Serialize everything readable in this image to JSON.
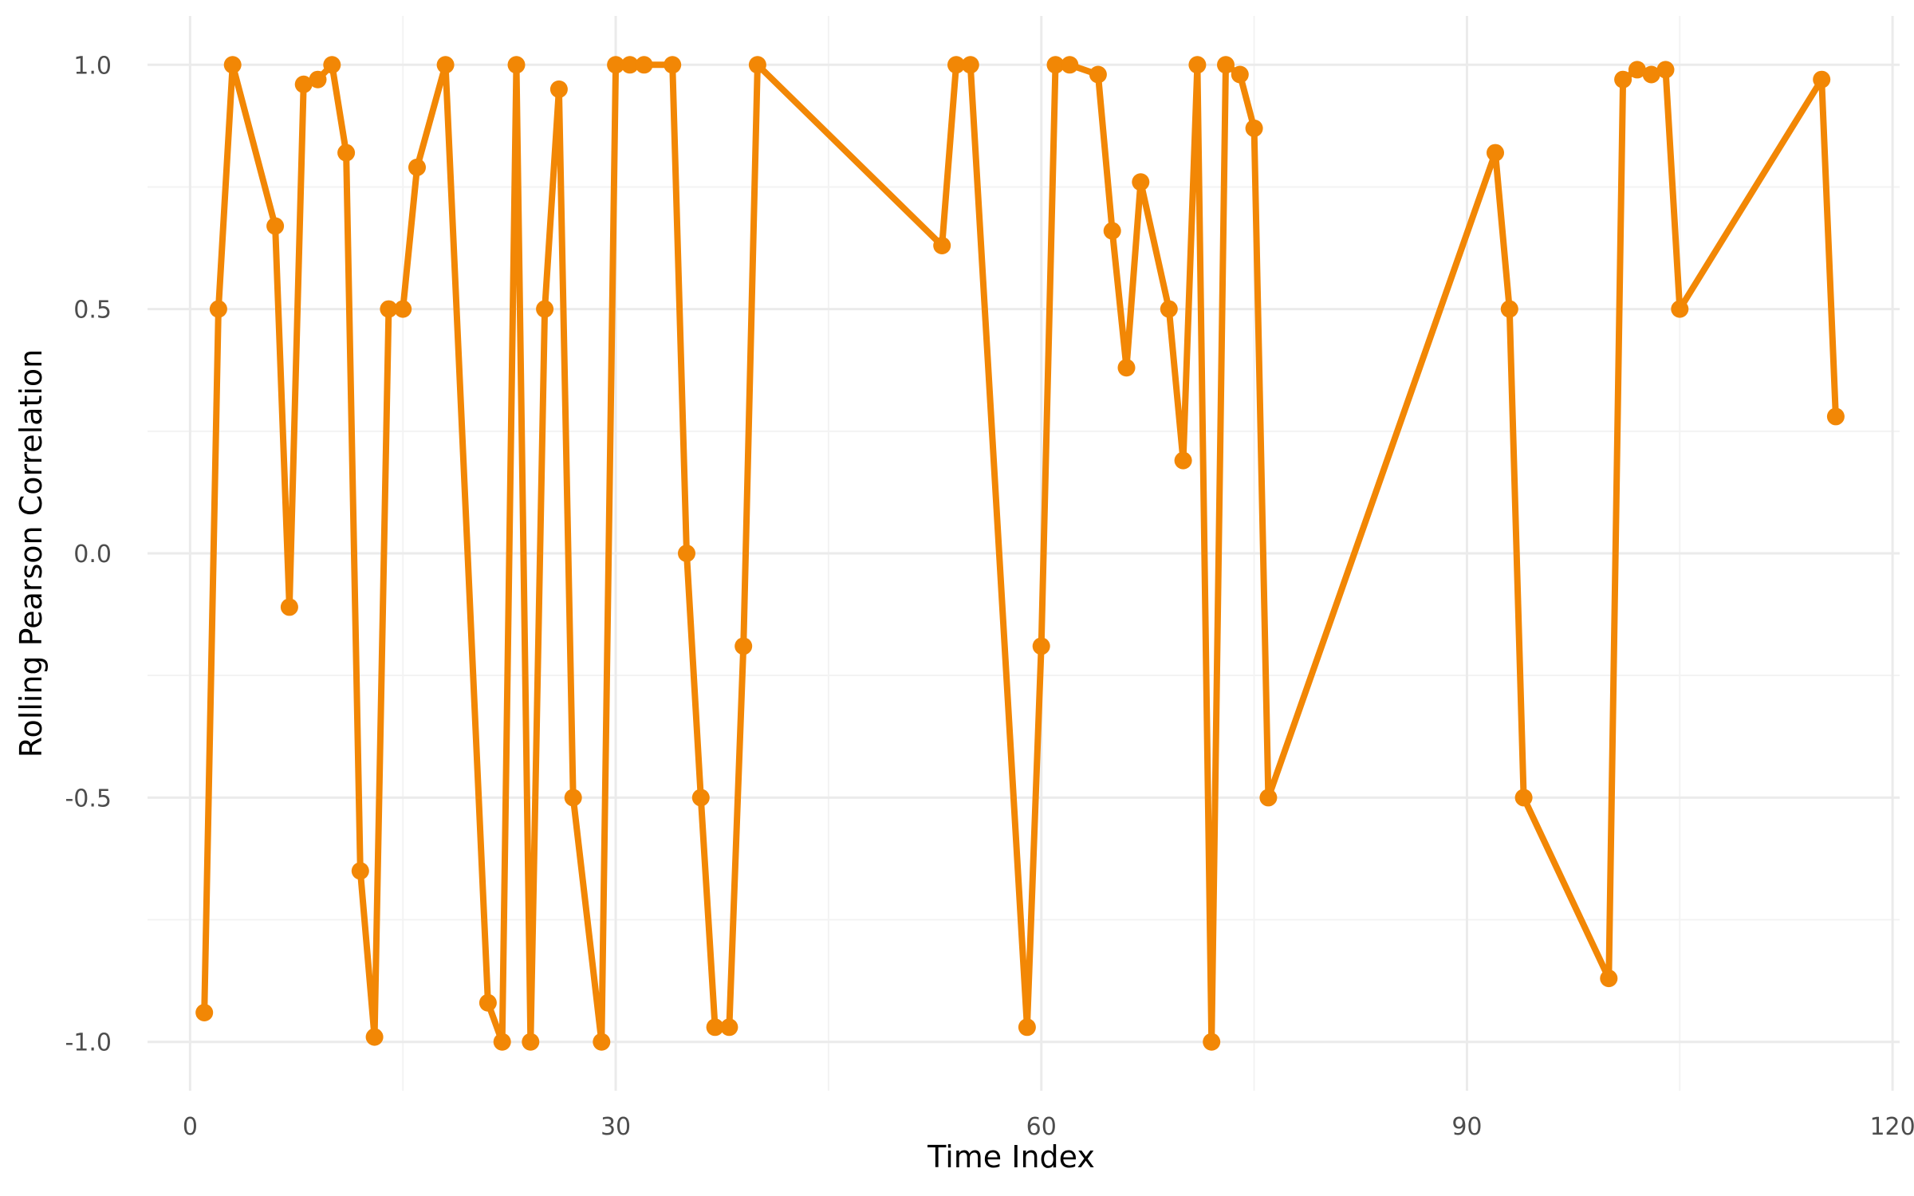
{
  "chart_data": {
    "type": "line",
    "title": "",
    "xlabel": "Time Index",
    "ylabel": "Rolling Pearson Correlation",
    "xlim": [
      -3,
      120.5
    ],
    "ylim": [
      -1.1,
      1.1
    ],
    "x_ticks": [
      0,
      30,
      60,
      90,
      120
    ],
    "x_tick_labels": [
      "0",
      "30",
      "60",
      "90",
      "120"
    ],
    "y_ticks": [
      -1.0,
      -0.5,
      0.0,
      0.5,
      1.0
    ],
    "y_tick_labels": [
      "-1.0",
      "-0.5",
      "0.0",
      "0.5",
      "1.0"
    ],
    "grid": true,
    "color": "#F28705",
    "series": [
      {
        "x": [
          1,
          2,
          3,
          6,
          7,
          8,
          9,
          10,
          11,
          12,
          13,
          14,
          15,
          16,
          18,
          21,
          22,
          23,
          24,
          25,
          26,
          27,
          29,
          30,
          31,
          32,
          34,
          35,
          36,
          37,
          38,
          39,
          40,
          53,
          54,
          55,
          59,
          60,
          61,
          62,
          64,
          65,
          66,
          67,
          69,
          70,
          71,
          72,
          73,
          74,
          75,
          76,
          92,
          93,
          94,
          100,
          101,
          102,
          103,
          104,
          105,
          115,
          116
        ],
        "y": [
          -0.94,
          0.5,
          1.0,
          0.67,
          -0.11,
          0.96,
          0.97,
          1.0,
          0.82,
          -0.65,
          -0.99,
          0.5,
          0.5,
          0.79,
          1.0,
          -0.92,
          -1.0,
          1.0,
          -1.0,
          0.5,
          0.95,
          -0.5,
          -1.0,
          1.0,
          1.0,
          1.0,
          1.0,
          0.0,
          -0.5,
          -0.97,
          -0.97,
          -0.19,
          1.0,
          0.63,
          1.0,
          1.0,
          -0.97,
          -0.19,
          1.0,
          1.0,
          0.98,
          0.66,
          0.38,
          0.76,
          0.5,
          0.19,
          1.0,
          -1.0,
          1.0,
          0.98,
          0.87,
          -0.5,
          0.82,
          0.5,
          -0.5,
          -0.87,
          0.97,
          0.99,
          0.98,
          0.99,
          0.5,
          0.97,
          0.28
        ]
      }
    ]
  }
}
